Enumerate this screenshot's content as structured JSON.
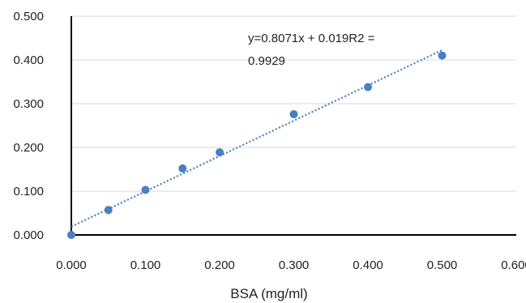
{
  "chart_data": {
    "type": "scatter",
    "title": "",
    "xlabel": "BSA (mg/ml)",
    "ylabel": "",
    "xlim": [
      0,
      0.6
    ],
    "ylim": [
      0,
      0.5
    ],
    "x_ticks": [
      "0.000",
      "0.100",
      "0.200",
      "0.300",
      "0.400",
      "0.500",
      "0.600"
    ],
    "y_ticks": [
      "0.000",
      "0.100",
      "0.200",
      "0.300",
      "0.400",
      "0.500"
    ],
    "grid": "horizontal",
    "legend": "none",
    "series": [
      {
        "x": [
          0,
          0.05,
          0.1,
          0.15,
          0.2,
          0.3,
          0.4,
          0.5
        ],
        "y": [
          0.0,
          0.057,
          0.103,
          0.152,
          0.189,
          0.276,
          0.338,
          0.41
        ],
        "color": "#4a7fc0"
      }
    ],
    "trendline": {
      "type": "linear",
      "slope": 0.8071,
      "intercept": 0.019,
      "x_range": [
        0,
        0.5
      ],
      "color": "#4a7fc0",
      "style": "dotted"
    },
    "annotations": [
      {
        "line1": "y=0.8071x + 0.019R2 =",
        "line2": "0.9929"
      }
    ]
  }
}
